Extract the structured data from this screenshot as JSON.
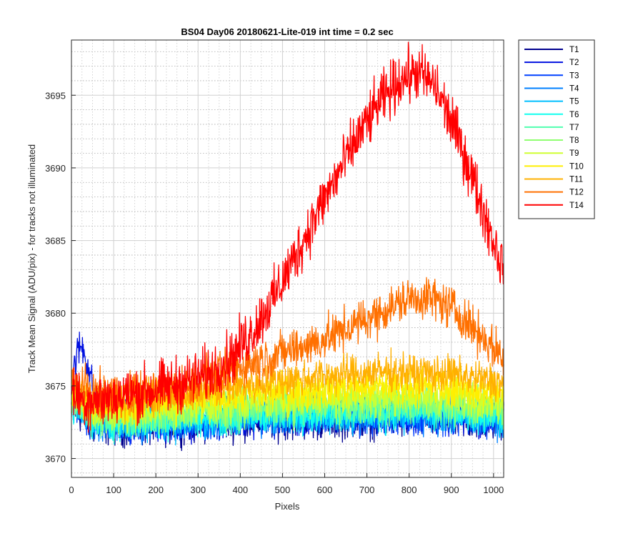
{
  "chart_data": {
    "type": "line",
    "title": "BS04 Day06 20180621-Lite-019 int time = 0.2 sec",
    "xlabel": "Pixels",
    "ylabel": "Track Mean Signal (ADU/pix) - for tracks not illuminated",
    "xlim": [
      0,
      1024
    ],
    "ylim": [
      3668.7,
      3698.8
    ],
    "x_ticks": [
      0,
      100,
      200,
      300,
      400,
      500,
      600,
      700,
      800,
      900,
      1000
    ],
    "y_ticks": [
      3670,
      3675,
      3680,
      3685,
      3690,
      3695
    ],
    "grid": "on (major and minor)",
    "legend_position": "outside-top-right",
    "series": [
      {
        "name": "T1",
        "color": "#00008F",
        "x": [
          0,
          50,
          150,
          300,
          450,
          600,
          750,
          900,
          1024
        ],
        "values": [
          3673.6,
          3672.3,
          3672.1,
          3672.4,
          3672.6,
          3672.6,
          3672.7,
          3672.6,
          3672.5
        ]
      },
      {
        "name": "T2",
        "color": "#0010E0",
        "x": [
          0,
          15,
          25,
          40,
          60,
          150,
          300,
          450,
          600,
          750,
          900,
          1024
        ],
        "values": [
          3675.5,
          3677.4,
          3677.8,
          3676.3,
          3673.5,
          3672.4,
          3672.6,
          3672.9,
          3672.9,
          3673.0,
          3672.9,
          3672.7
        ]
      },
      {
        "name": "T3",
        "color": "#0040FF",
        "x": [
          0,
          50,
          150,
          300,
          450,
          600,
          750,
          900,
          1024
        ],
        "values": [
          3673.9,
          3672.6,
          3672.4,
          3672.7,
          3672.9,
          3673.0,
          3673.0,
          3672.9,
          3672.8
        ]
      },
      {
        "name": "T4",
        "color": "#0080FF",
        "x": [
          0,
          50,
          150,
          300,
          450,
          600,
          750,
          900,
          1024
        ],
        "values": [
          3673.8,
          3672.5,
          3672.3,
          3672.6,
          3672.8,
          3672.9,
          3673.0,
          3672.9,
          3672.7
        ]
      },
      {
        "name": "T5",
        "color": "#00BFFF",
        "x": [
          0,
          50,
          150,
          300,
          450,
          600,
          750,
          900,
          1024
        ],
        "values": [
          3674.0,
          3672.6,
          3672.4,
          3672.8,
          3673.0,
          3673.1,
          3673.2,
          3673.1,
          3672.9
        ]
      },
      {
        "name": "T6",
        "color": "#10FFEF",
        "x": [
          0,
          50,
          150,
          300,
          450,
          600,
          750,
          900,
          1024
        ],
        "values": [
          3674.0,
          3672.7,
          3672.5,
          3672.9,
          3673.1,
          3673.2,
          3673.3,
          3673.2,
          3673.0
        ]
      },
      {
        "name": "T7",
        "color": "#50FFAF",
        "x": [
          0,
          50,
          150,
          300,
          450,
          600,
          750,
          900,
          1024
        ],
        "values": [
          3674.2,
          3672.9,
          3672.7,
          3673.1,
          3673.4,
          3673.5,
          3673.6,
          3673.5,
          3673.3
        ]
      },
      {
        "name": "T8",
        "color": "#8FFF70",
        "x": [
          0,
          50,
          150,
          300,
          450,
          600,
          750,
          900,
          1024
        ],
        "values": [
          3674.3,
          3673.0,
          3672.9,
          3673.3,
          3673.6,
          3673.8,
          3673.9,
          3673.8,
          3673.6
        ]
      },
      {
        "name": "T9",
        "color": "#CFFF30",
        "x": [
          0,
          50,
          150,
          300,
          450,
          600,
          750,
          900,
          1024
        ],
        "values": [
          3674.5,
          3673.3,
          3673.2,
          3673.6,
          3674.0,
          3674.2,
          3674.3,
          3674.2,
          3673.9
        ]
      },
      {
        "name": "T10",
        "color": "#FFEF00",
        "x": [
          0,
          50,
          150,
          300,
          450,
          600,
          750,
          900,
          1024
        ],
        "values": [
          3674.8,
          3673.7,
          3673.6,
          3674.1,
          3674.5,
          3674.8,
          3675.0,
          3674.9,
          3674.5
        ]
      },
      {
        "name": "T11",
        "color": "#FFB000",
        "x": [
          0,
          50,
          150,
          300,
          450,
          600,
          750,
          900,
          1024
        ],
        "values": [
          3675.0,
          3674.1,
          3674.1,
          3674.6,
          3675.2,
          3675.7,
          3676.0,
          3675.8,
          3675.2
        ]
      },
      {
        "name": "T12",
        "color": "#FF7000",
        "x": [
          0,
          50,
          150,
          250,
          350,
          420,
          500,
          600,
          700,
          800,
          850,
          900,
          960,
          1024
        ],
        "values": [
          3675.3,
          3674.5,
          3674.5,
          3674.8,
          3675.8,
          3676.5,
          3677.3,
          3678.2,
          3679.6,
          3681.0,
          3681.1,
          3680.4,
          3678.8,
          3676.9
        ]
      },
      {
        "name": "T14",
        "color": "#FF0000",
        "x": [
          0,
          30,
          80,
          150,
          250,
          330,
          380,
          430,
          480,
          530,
          580,
          630,
          680,
          730,
          780,
          820,
          860,
          900,
          940,
          980,
          1024
        ],
        "values": [
          3674.5,
          3674.0,
          3674.1,
          3674.4,
          3675.1,
          3675.9,
          3677.0,
          3678.8,
          3681.1,
          3683.9,
          3686.8,
          3689.5,
          3692.2,
          3694.5,
          3696.1,
          3696.6,
          3695.7,
          3693.2,
          3690.2,
          3686.7,
          3683.0
        ]
      }
    ]
  }
}
